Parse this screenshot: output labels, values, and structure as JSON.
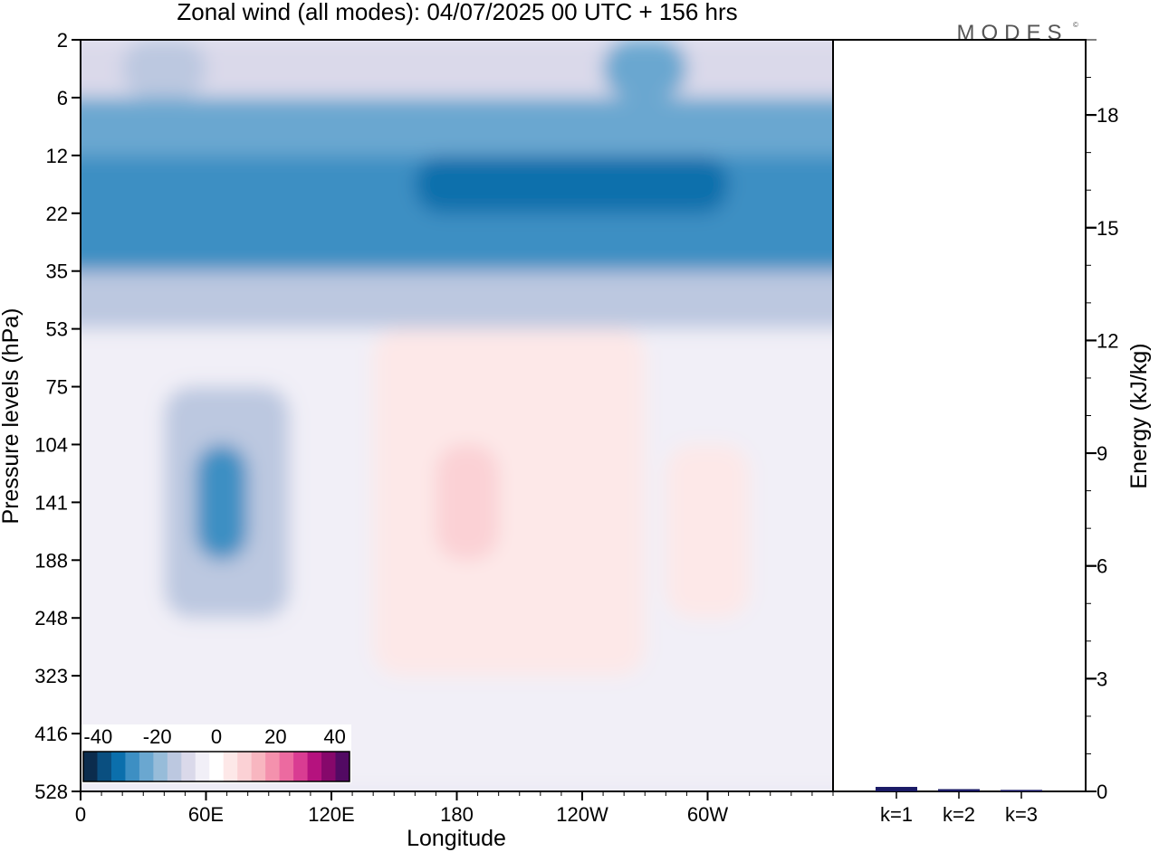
{
  "header": {
    "title": "Zonal wind (all modes):  04/07/2025  00 UTC  + 156 hrs",
    "logo": "MODES"
  },
  "chart_data": [
    {
      "type": "heatmap",
      "title": "Zonal wind (all modes):  04/07/2025  00 UTC  + 156 hrs",
      "xlabel": "Longitude",
      "ylabel": "Pressure levels (hPa)",
      "x_ticks": [
        "0",
        "60E",
        "120E",
        "180",
        "120W",
        "60W"
      ],
      "x_tick_degrees": [
        0,
        60,
        120,
        180,
        240,
        300
      ],
      "xlim": [
        0,
        360
      ],
      "y_ticks": [
        "2",
        "6",
        "12",
        "22",
        "35",
        "53",
        "75",
        "104",
        "141",
        "188",
        "248",
        "323",
        "416",
        "528"
      ],
      "y_scale": "model levels (top to bottom)",
      "colorbar": {
        "ticks": [
          "-40",
          "-20",
          "0",
          "20",
          "40"
        ],
        "range": [
          -45,
          45
        ],
        "colors": [
          "#0b2c4d",
          "#0a4f80",
          "#0b6fac",
          "#3d8fc3",
          "#6aa7d0",
          "#97bcd9",
          "#bcc8e0",
          "#dad9ea",
          "#f1eff7",
          "#ffffff",
          "#fde8e8",
          "#fbd1d5",
          "#f8b6c0",
          "#f491ad",
          "#ec6aa0",
          "#d93c92",
          "#b5127e",
          "#86086b",
          "#520a63"
        ]
      },
      "approx_field": [
        {
          "lon": [
            0,
            360
          ],
          "levels": [
            "2",
            "6"
          ],
          "value": -10
        },
        {
          "lon": [
            20,
            60
          ],
          "levels": [
            "2",
            "6"
          ],
          "value": -15
        },
        {
          "lon": [
            250,
            290
          ],
          "levels": [
            "2",
            "6"
          ],
          "value": -25
        },
        {
          "lon": [
            0,
            360
          ],
          "levels": [
            "6",
            "12"
          ],
          "value": -22
        },
        {
          "lon": [
            0,
            360
          ],
          "levels": [
            "12",
            "35"
          ],
          "value": -27
        },
        {
          "lon": [
            160,
            310
          ],
          "levels": [
            "12",
            "22"
          ],
          "value": -33
        },
        {
          "lon": [
            0,
            360
          ],
          "levels": [
            "35",
            "53"
          ],
          "value": -12
        },
        {
          "lon": [
            0,
            360
          ],
          "levels": [
            "53",
            "528"
          ],
          "value": -5
        },
        {
          "lon": [
            140,
            270
          ],
          "levels": [
            "53",
            "323"
          ],
          "value": 4
        },
        {
          "lon": [
            170,
            200
          ],
          "levels": [
            "104",
            "188"
          ],
          "value": 10
        },
        {
          "lon": [
            40,
            100
          ],
          "levels": [
            "75",
            "248"
          ],
          "value": -15
        },
        {
          "lon": [
            55,
            80
          ],
          "levels": [
            "104",
            "188"
          ],
          "value": -27
        },
        {
          "lon": [
            280,
            320
          ],
          "levels": [
            "104",
            "248"
          ],
          "value": 5
        }
      ]
    },
    {
      "type": "bar",
      "categories": [
        "k=1",
        "k=2",
        "k=3"
      ],
      "values": [
        0.12,
        0.06,
        0.04
      ],
      "ylabel": "Energy (kJ/kg)",
      "y_ticks": [
        "0",
        "3",
        "6",
        "9",
        "12",
        "15",
        "18"
      ],
      "ylim": [
        0,
        20
      ],
      "bar_color": "#1a1a66"
    }
  ]
}
